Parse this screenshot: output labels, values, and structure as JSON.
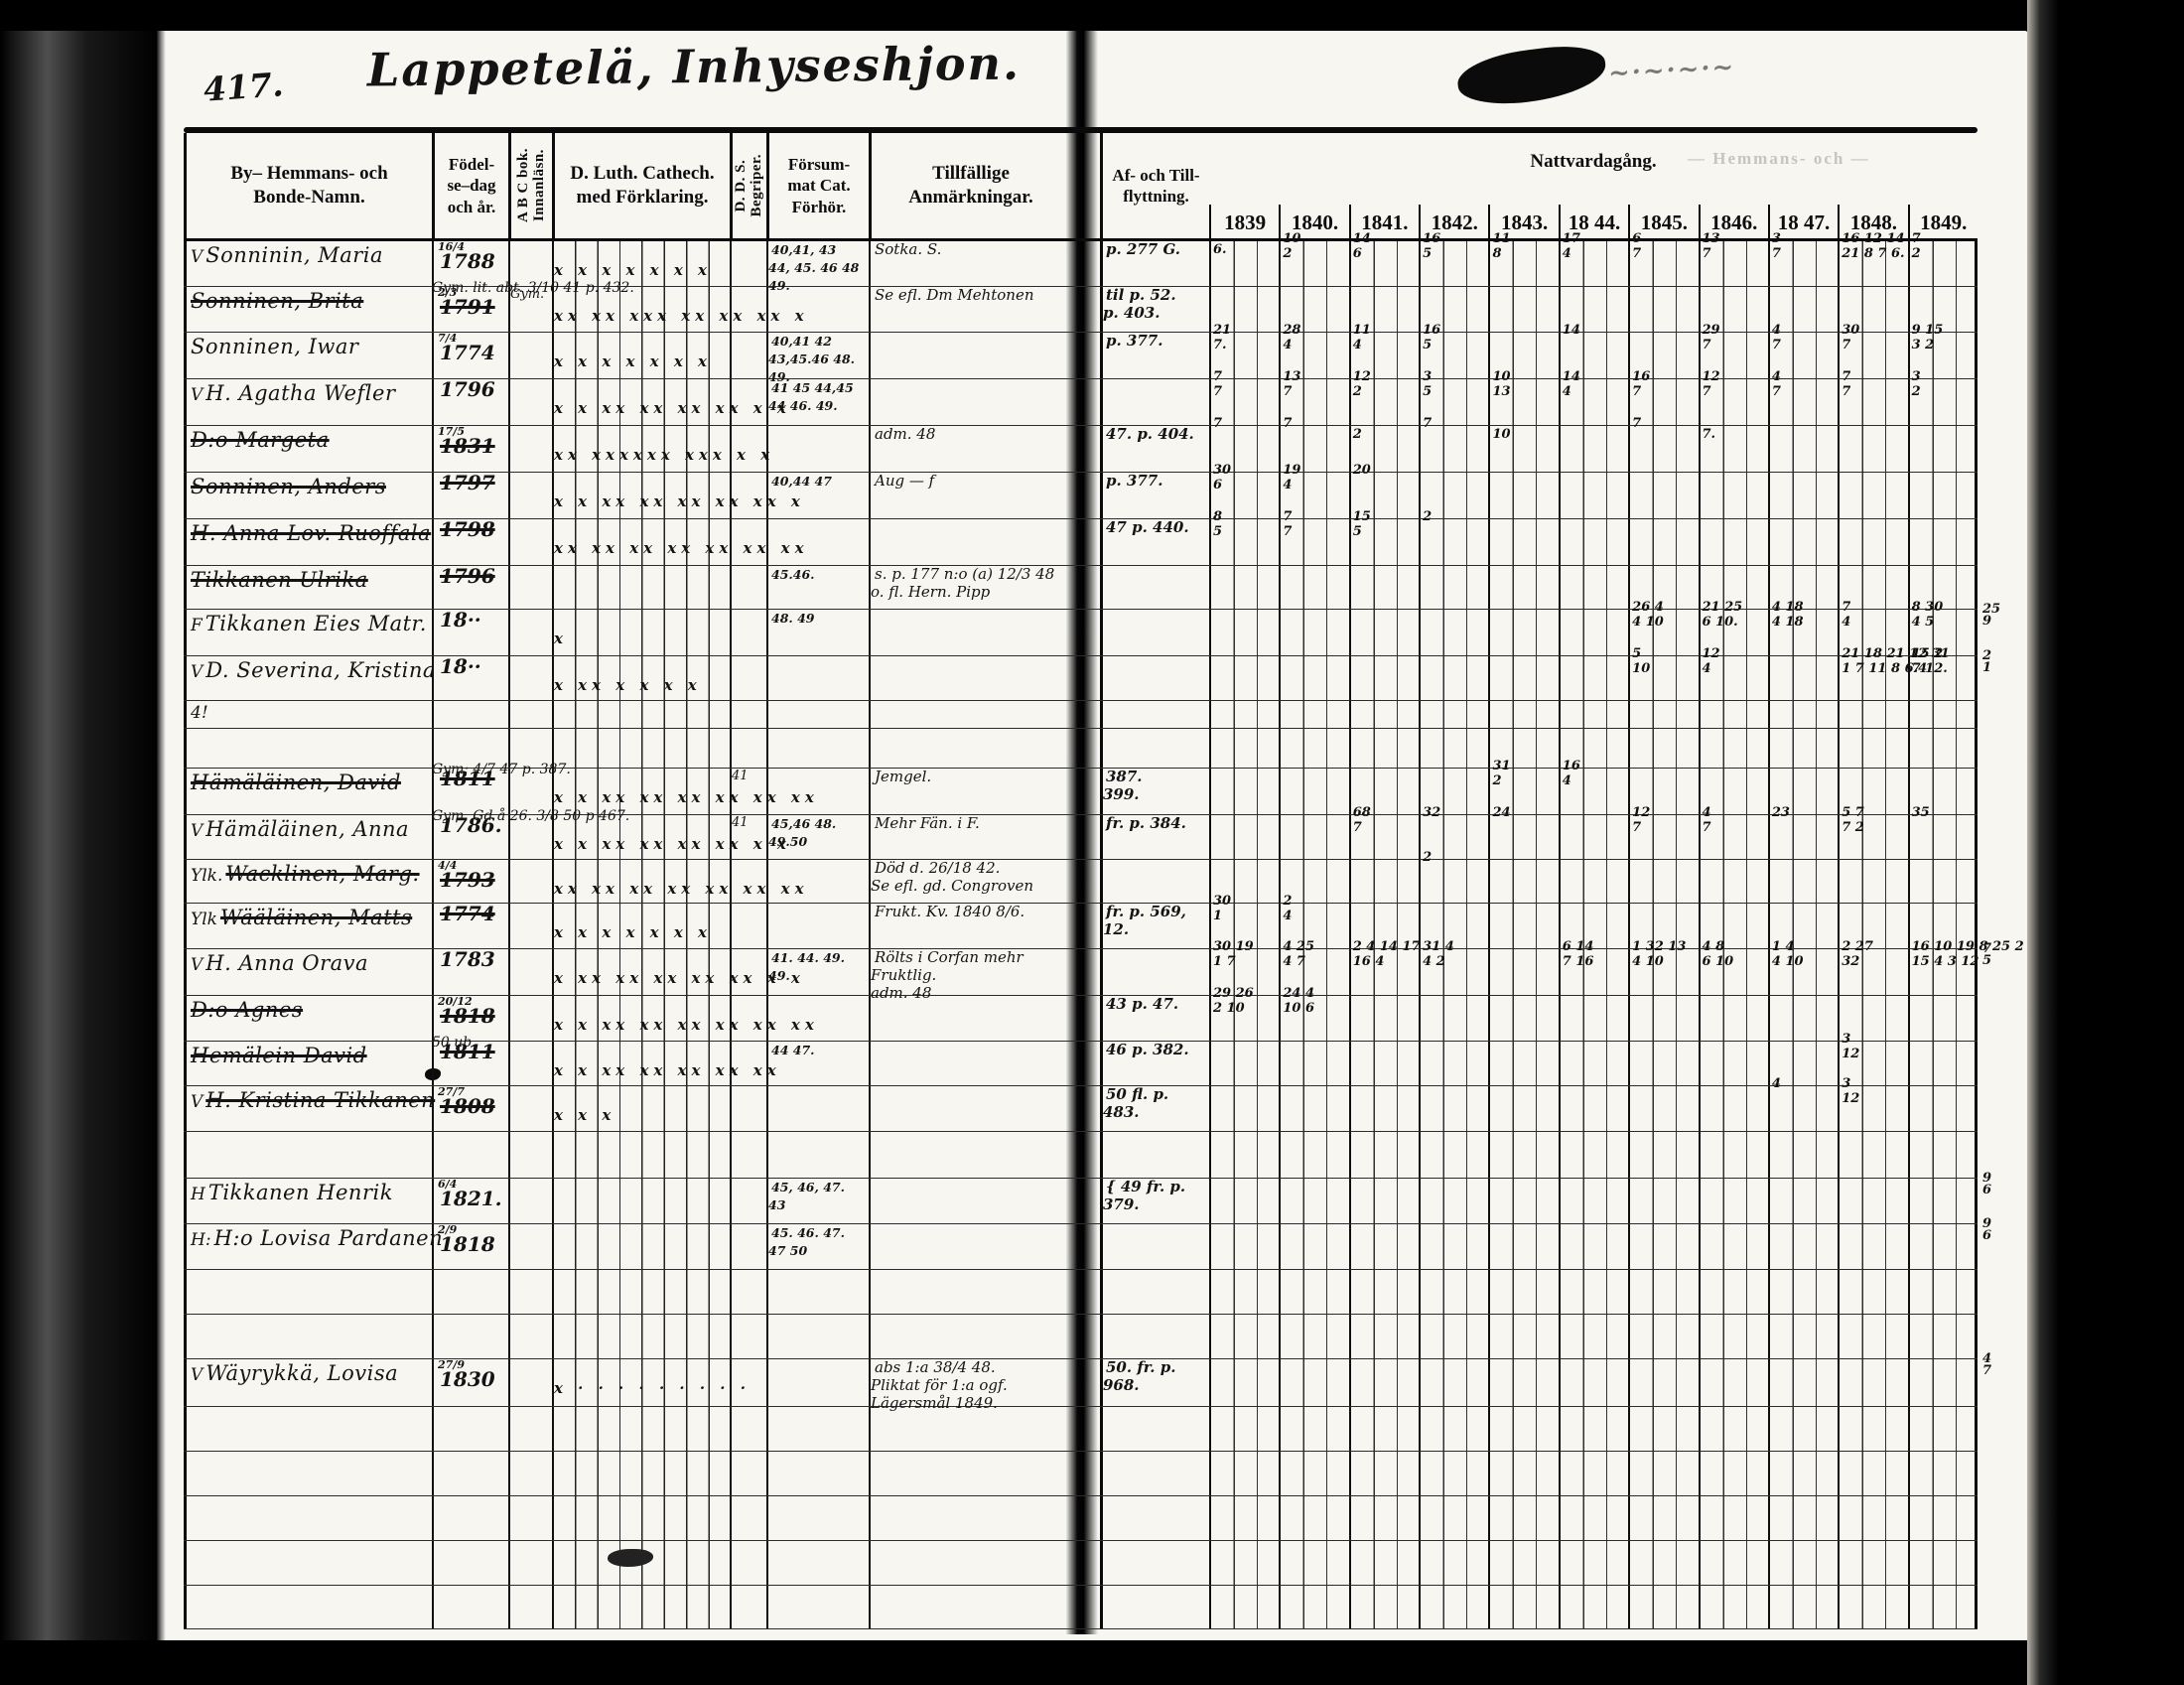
{
  "page_number": "417.",
  "title": "Lappetelä, Inhyseshjon.",
  "headers": {
    "name": "By– Hemmans- och\nBonde-Namn.",
    "birth": "Födel-\nse–dag\noch år.",
    "abc": "A B C bok.\nInnanläsn.",
    "cathech": "D. Luth. Cathech.\nmed Förklaring.",
    "dds": "D. D. S.\nBegriper.",
    "forsummat": "Försum-\nmat Cat.\nFörhör.",
    "anmarkningar": "Tillfällige Anmärkningar.",
    "flyttning": "Af- och Till-\nflyttning.",
    "nattvard": "Nattvardagång."
  },
  "years": [
    "1839",
    "1840.",
    "1841.",
    "1842.",
    "1843.",
    "18 44.",
    "1845.",
    "1846.",
    "18 47.",
    "1848.",
    "1849."
  ],
  "bleed_text": "— Hemmans- och —",
  "rows": [
    {
      "h": 46,
      "mark": "V",
      "name": "Sonninin, Maria",
      "struck": false,
      "bfrac": "16/4",
      "byear": "1788",
      "abc": "",
      "note": "",
      "cath": "x x x x  x  x  x",
      "dds": "",
      "forsum": "40,41, 43\n44, 45. 46 48\n49.",
      "anm": "Sotka.      S.",
      "flytt": "p. 277 G.",
      "natt": [
        "|6.",
        "10|2",
        "14|6",
        "16|5",
        "11|8",
        "17|4",
        "6|7",
        "13|7",
        "3|7",
        "16 12 14|21 8 7 6.",
        "7|2"
      ],
      "rm": ""
    },
    {
      "h": 46,
      "mark": "",
      "name": "Sonninen, Brita",
      "struck": true,
      "bfrac": "2/3",
      "byear": "1791",
      "abc": "Gym.",
      "note": "Gym. lit. abt. 3/10 41 p. 432.",
      "cath": "xx xx xxx xx xx xx x",
      "dds": "",
      "forsum": "",
      "anm": "Se efl. Dm Mehtonen",
      "flytt": "til p. 52.\np. 403.",
      "natt": [
        "",
        "",
        "",
        "",
        "",
        "",
        "",
        "",
        "",
        "",
        ""
      ],
      "rm": ""
    },
    {
      "h": 47,
      "mark": "",
      "name": "Sonninen, Iwar",
      "struck": false,
      "bfrac": "7/4",
      "byear": "1774",
      "abc": "",
      "note": "",
      "cath": "x x x  x  x  x  x",
      "dds": "",
      "forsum": "40,41 42\n43,45.46 48.\n49.",
      "anm": "",
      "flytt": "p. 377.",
      "natt": [
        "21|7.",
        "28|4",
        "11|4",
        "16|5",
        "",
        "14|",
        "",
        "29|7",
        "4|7",
        "30|7",
        "9 15|3 2"
      ],
      "rm": ""
    },
    {
      "h": 47,
      "mark": "V",
      "name": "H. Agatha Wefler",
      "struck": false,
      "bfrac": "",
      "byear": "1796",
      "abc": "",
      "note": "",
      "cath": "x x xx xx xx xx x x",
      "dds": "",
      "forsum": "41 45 44,45\n44 46. 49.",
      "anm": "",
      "flytt": "",
      "natt": [
        "7|7",
        "13|7",
        "12|2",
        "3|5",
        "10|13",
        "14|4",
        "16|7",
        "12|7",
        "4|7",
        "7|7",
        "3|2"
      ],
      "rm": ""
    },
    {
      "h": 47,
      "mark": "",
      "name": "D:o Margeta",
      "struck": true,
      "bfrac": "17/5",
      "byear": "1831",
      "abc": "",
      "note": "",
      "cath": "xx xxxxxx xxx x x",
      "dds": "",
      "forsum": "",
      "anm": "adm. 48",
      "flytt": "47. p. 404.",
      "natt": [
        "7|",
        "7|",
        "|2",
        "7|",
        "|10",
        "|",
        "7|",
        "|7.",
        "",
        "",
        ""
      ],
      "rm": ""
    },
    {
      "h": 47,
      "mark": "",
      "name": "Sonninen, Anders",
      "struck": true,
      "bfrac": "",
      "byear": "1797",
      "abc": "",
      "note": "",
      "cath": "x x xx xx xx xx xx x",
      "dds": "",
      "forsum": "40,44 47",
      "anm": "Aug —   f",
      "flytt": "p. 377.",
      "natt": [
        "30|6",
        "19|4",
        "20|",
        "",
        "",
        "",
        "",
        "",
        "",
        "",
        ""
      ],
      "rm": ""
    },
    {
      "h": 47,
      "mark": "",
      "name": "H. Anna Lov. Ruoffala",
      "struck": true,
      "bfrac": "",
      "byear": "1798",
      "abc": "",
      "note": "",
      "cath": "xx xx xx xx xx xx xx",
      "dds": "",
      "forsum": "",
      "anm": "",
      "flytt": "47 p. 440.",
      "natt": [
        "8|5",
        "7|7",
        "15|5",
        "2|",
        "",
        "",
        "",
        "",
        "",
        "",
        ""
      ],
      "rm": ""
    },
    {
      "h": 44,
      "mark": "",
      "name": "Tikkanen Ulrika",
      "struck": true,
      "bfrac": "",
      "byear": "1796",
      "abc": "",
      "note": "",
      "cath": "",
      "dds": "",
      "forsum": "45.46.",
      "anm": "s. p. 177 n:o (a) 12/3 48\no. fl. Hern.  Pipp",
      "flytt": "",
      "natt": [
        "",
        "",
        "",
        "",
        "",
        "",
        "",
        "",
        "",
        "",
        ""
      ],
      "rm": ""
    },
    {
      "h": 47,
      "mark": "F",
      "name": "Tikkanen Eies Matr.",
      "struck": false,
      "bfrac": "",
      "byear": "18··",
      "abc": "",
      "note": "",
      "cath": "x",
      "dds": "",
      "forsum": "48. 49",
      "anm": "",
      "flytt": "",
      "natt": [
        "",
        "",
        "",
        "",
        "",
        "",
        "26 4|4 10",
        "21 25|6 10.",
        "4 18|4 18",
        "7|4",
        "8 30|4 5"
      ],
      "rm": "25\n9"
    },
    {
      "h": 45,
      "mark": "V",
      "name": "D. Severina, Kristina",
      "struck": false,
      "bfrac": "",
      "byear": "18··",
      "abc": "",
      "note": "",
      "cath": "x xx x  x  x  x",
      "dds": "",
      "forsum": "",
      "anm": "",
      "flytt": "",
      "natt": [
        "",
        "",
        "",
        "",
        "",
        "",
        "5|10",
        "12|4",
        "",
        "21 18 21 12 31|1 7 11 8 6.4",
        "15 2|7 12."
      ],
      "rm": "2\n1"
    },
    {
      "h": 28,
      "mark": "4!",
      "name": "",
      "struck": false,
      "bfrac": "",
      "byear": "",
      "abc": "",
      "note": "",
      "cath": "",
      "dds": "",
      "forsum": "",
      "anm": "",
      "flytt": "",
      "natt": [
        "",
        "",
        "",
        "",
        "",
        "",
        "",
        "",
        "",
        "",
        ""
      ],
      "rm": ""
    },
    {
      "h": 40,
      "mark": "",
      "name": "",
      "struck": false,
      "bfrac": "",
      "byear": "",
      "abc": "",
      "note": "",
      "cath": "",
      "dds": "",
      "forsum": "",
      "anm": "",
      "flytt": "",
      "natt": [
        "",
        "",
        "",
        "",
        "",
        "",
        "",
        "",
        "",
        "",
        ""
      ],
      "rm": ""
    },
    {
      "h": 47,
      "mark": "",
      "name": "Hämäläinen, David",
      "struck": true,
      "bfrac": "",
      "byear": "1811",
      "abc": "",
      "note": "Gym: 4/7 47 p. 387.",
      "cath": "x x xx xx xx xx xx xx",
      "dds": "41",
      "forsum": "",
      "anm": "Jemgel.",
      "flytt": "387.\n399.",
      "natt": [
        "",
        "",
        "",
        "",
        "31|2",
        "16|4",
        "",
        "",
        "",
        "",
        ""
      ],
      "rm": ""
    },
    {
      "h": 45,
      "mark": "V",
      "name": "Hämäläinen, Anna",
      "struck": false,
      "bfrac": "",
      "byear": "1786.",
      "abc": "",
      "note": "Gym. Gd å 26. 3/8 50 p 467.",
      "cath": "x x xx xx xx xx x x",
      "dds": "41",
      "forsum": "45,46 48.\n49.50",
      "anm": "Mehr Fän.  i F.",
      "flytt": "fr. p. 384.",
      "natt": [
        "",
        "",
        "68|7",
        "32|",
        "24|",
        "",
        "12|7",
        "4|7",
        "23|",
        "5 7|7 2",
        "35|"
      ],
      "rm": ""
    },
    {
      "h": 44,
      "mark": "Ylk.",
      "name": "Wacklinen, Marg.",
      "struck": true,
      "bfrac": "4/4",
      "byear": "1793",
      "abc": "",
      "note": "",
      "cath": "xx xx xx xx xx xx xx",
      "dds": "",
      "forsum": "",
      "anm": "Död d. 26/18 42.\nSe efl. gd. Congroven",
      "flytt": "",
      "natt": [
        "",
        "",
        "",
        "2|",
        "",
        "",
        "",
        "",
        "",
        "",
        ""
      ],
      "rm": ""
    },
    {
      "h": 46,
      "mark": "Ylk",
      "name": "Wääläinen, Matts",
      "struck": true,
      "bfrac": "",
      "byear": "1774",
      "abc": "",
      "note": "",
      "cath": "x  x  x  x  x  x  x",
      "dds": "",
      "forsum": "",
      "anm": "Frukt. Kv. 1840 8/6.",
      "flytt": "fr. p. 569, 12.",
      "natt": [
        "30|1",
        "2|4",
        "",
        "",
        "",
        "",
        "",
        "",
        "",
        "",
        ""
      ],
      "rm": ""
    },
    {
      "h": 47,
      "mark": "V",
      "name": "H. Anna Orava",
      "struck": false,
      "bfrac": "",
      "byear": "1783",
      "abc": "",
      "note": "",
      "cath": "x xx xx xx xx xx x x",
      "dds": "",
      "forsum": "41. 44.  49.\n49.",
      "anm": "Rölts i Corfan mehr\nFruktlig.\nadm. 48",
      "flytt": "",
      "natt": [
        "30 19|1 7",
        "4 25|4 7",
        "2 4 14 17|16 4",
        "31 4|4 2",
        "",
        "6 14|7 16",
        "1 32 13|4 10",
        "4 8|6 10",
        "1 4|4 10",
        "2 27|32",
        "16 10 19 8 25 2|15 4 3 12"
      ],
      "rm": "7\n5"
    },
    {
      "h": 46,
      "mark": "",
      "name": "D:o Agnes",
      "struck": true,
      "bfrac": "20/12",
      "byear": "1818",
      "abc": "",
      "note": "",
      "cath": "x x xx xx xx xx xx xx",
      "dds": "",
      "forsum": "",
      "anm": "",
      "flytt": "43 p. 47.",
      "natt": [
        "29 26|2 10",
        "24 4|10 6",
        "",
        "",
        "",
        "",
        "",
        "",
        "",
        "",
        ""
      ],
      "rm": ""
    },
    {
      "h": 45,
      "mark": "",
      "name": "Hemälein David",
      "struck": true,
      "bfrac": "",
      "byear": "1811",
      "abc": "",
      "note": "50 ub.",
      "cath": "x x xx xx xx xx xx",
      "dds": "",
      "forsum": "44 47.",
      "anm": "",
      "flytt": "46 p. 382.",
      "natt": [
        "",
        "",
        "",
        "",
        "",
        "",
        "",
        "",
        "",
        "3|12",
        ""
      ],
      "rm": ""
    },
    {
      "h": 46,
      "mark": "V",
      "name": "H. Kristina Tikkanen",
      "struck": true,
      "bfrac": "27/7",
      "byear": "1808",
      "abc": "",
      "note": "",
      "cath": "x x x",
      "dds": "",
      "forsum": "",
      "anm": "",
      "flytt": "50 fl. p. 483.",
      "natt": [
        "",
        "",
        "",
        "",
        "",
        "",
        "",
        "",
        "4|",
        "3|12",
        ""
      ],
      "rm": ""
    },
    {
      "h": 47,
      "mark": "",
      "name": "",
      "struck": false,
      "bfrac": "",
      "byear": "",
      "abc": "",
      "note": "",
      "cath": "",
      "dds": "",
      "forsum": "",
      "anm": "",
      "flytt": "",
      "natt": [
        "",
        "",
        "",
        "",
        "",
        "",
        "",
        "",
        "",
        "",
        ""
      ],
      "rm": ""
    },
    {
      "h": 46,
      "mark": "H",
      "name": "Tikkanen Henrik",
      "struck": false,
      "bfrac": "6/4",
      "byear": "1821.",
      "abc": "",
      "note": "",
      "cath": "",
      "dds": "",
      "forsum": "45, 46, 47.\n43",
      "anm": "",
      "flytt": "{ 49 fr. p. 379.",
      "natt": [
        "",
        "",
        "",
        "",
        "",
        "",
        "",
        "",
        "",
        "",
        ""
      ],
      "rm": "9\n6"
    },
    {
      "h": 46,
      "mark": "H:",
      "name": "H:o Lovisa Pardanen",
      "struck": false,
      "bfrac": "2/9",
      "byear": "1818",
      "abc": "",
      "note": "",
      "cath": "",
      "dds": "",
      "forsum": "45. 46. 47.\n47 50",
      "anm": "",
      "flytt": "",
      "natt": [
        "",
        "",
        "",
        "",
        "",
        "",
        "",
        "",
        "",
        "",
        ""
      ],
      "rm": "9\n6"
    },
    {
      "h": 45,
      "mark": "",
      "name": "",
      "struck": false,
      "bfrac": "",
      "byear": "",
      "abc": "",
      "note": "",
      "cath": "",
      "dds": "",
      "forsum": "",
      "anm": "",
      "flytt": "",
      "natt": [
        "",
        "",
        "",
        "",
        "",
        "",
        "",
        "",
        "",
        "",
        ""
      ],
      "rm": ""
    },
    {
      "h": 45,
      "mark": "",
      "name": "",
      "struck": false,
      "bfrac": "",
      "byear": "",
      "abc": "",
      "note": "",
      "cath": "",
      "dds": "",
      "forsum": "",
      "anm": "",
      "flytt": "",
      "natt": [
        "",
        "",
        "",
        "",
        "",
        "",
        "",
        "",
        "",
        "",
        ""
      ],
      "rm": ""
    },
    {
      "h": 48,
      "mark": "V",
      "name": "Wäyrykkä, Lovisa",
      "struck": false,
      "bfrac": "27/9",
      "byear": "1830",
      "abc": "",
      "note": "",
      "cath": "x  ·  · · · · · · · ·",
      "dds": "",
      "forsum": "",
      "anm": "abs 1:a 38/4 48.\nPliktat för 1:a ogf. Lägersmål 1849.",
      "flytt": "50. fr. p. 968.",
      "natt": [
        "",
        "",
        "",
        "",
        "",
        "",
        "",
        "",
        "",
        "",
        ""
      ],
      "rm": "4\n7"
    },
    {
      "h": 45,
      "mark": "",
      "name": "",
      "struck": false,
      "bfrac": "",
      "byear": "",
      "abc": "",
      "note": "",
      "cath": "",
      "dds": "",
      "forsum": "",
      "anm": "",
      "flytt": "",
      "natt": [
        "",
        "",
        "",
        "",
        "",
        "",
        "",
        "",
        "",
        "",
        ""
      ],
      "rm": ""
    },
    {
      "h": 45,
      "mark": "",
      "name": "",
      "struck": false,
      "bfrac": "",
      "byear": "",
      "abc": "",
      "note": "",
      "cath": "",
      "dds": "",
      "forsum": "",
      "anm": "",
      "flytt": "",
      "natt": [
        "",
        "",
        "",
        "",
        "",
        "",
        "",
        "",
        "",
        "",
        ""
      ],
      "rm": ""
    },
    {
      "h": 45,
      "mark": "",
      "name": "",
      "struck": false,
      "bfrac": "",
      "byear": "",
      "abc": "",
      "note": "",
      "cath": "",
      "dds": "",
      "forsum": "",
      "anm": "",
      "flytt": "",
      "natt": [
        "",
        "",
        "",
        "",
        "",
        "",
        "",
        "",
        "",
        "",
        ""
      ],
      "rm": ""
    },
    {
      "h": 45,
      "mark": "",
      "name": "",
      "struck": false,
      "bfrac": "",
      "byear": "",
      "abc": "",
      "note": "",
      "cath": "",
      "dds": "",
      "forsum": "",
      "anm": "",
      "flytt": "",
      "natt": [
        "",
        "",
        "",
        "",
        "",
        "",
        "",
        "",
        "",
        "",
        ""
      ],
      "rm": ""
    },
    {
      "h": 44,
      "mark": "",
      "name": "",
      "struck": false,
      "bfrac": "",
      "byear": "",
      "abc": "",
      "note": "",
      "cath": "",
      "dds": "",
      "forsum": "",
      "anm": "",
      "flytt": "",
      "natt": [
        "",
        "",
        "",
        "",
        "",
        "",
        "",
        "",
        "",
        "",
        ""
      ],
      "rm": ""
    }
  ]
}
